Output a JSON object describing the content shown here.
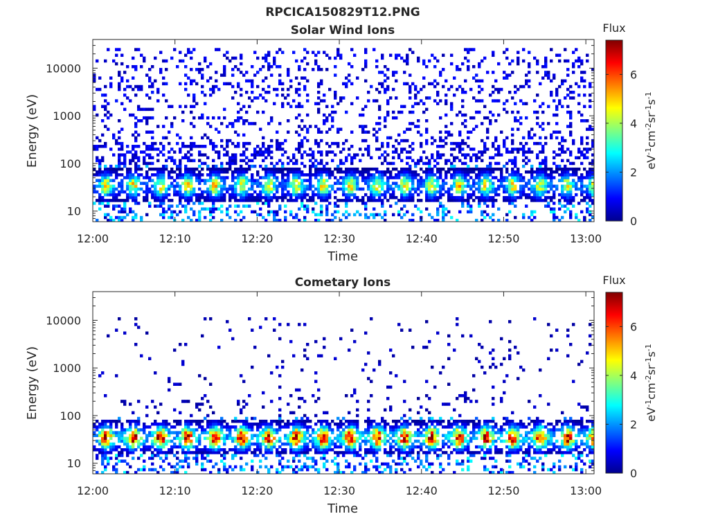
{
  "figure_title": "RPCICA150829T12.PNG",
  "chart_data": [
    {
      "type": "heatmap",
      "title": "Solar Wind Ions",
      "xlabel": "Time",
      "ylabel": "Energy (eV)",
      "x_range": [
        "12:00",
        "13:01"
      ],
      "x_ticks": [
        "12:00",
        "12:10",
        "12:20",
        "12:30",
        "12:40",
        "12:50",
        "13:00"
      ],
      "y_scale": "log",
      "y_range": [
        6,
        40000
      ],
      "y_ticks": [
        10,
        100,
        1000,
        10000
      ],
      "y_tick_labels": [
        "10",
        "100",
        "1000",
        "10000"
      ],
      "colorbar": {
        "title": "Flux",
        "label": "eV-1cm-2sr-1s-1",
        "range": [
          0,
          7.4
        ],
        "ticks": [
          0,
          2,
          4,
          6
        ],
        "tick_labels": [
          "0",
          "2",
          "4",
          "6"
        ],
        "colormap": "jet"
      },
      "features": {
        "main_band_energy_eV": [
          20,
          60
        ],
        "main_band_peak_flux": 4.5,
        "background_scatter_energy_eV": [
          100,
          25000
        ],
        "background_flux": 0.5,
        "band_period_minutes": 3.3
      }
    },
    {
      "type": "heatmap",
      "title": "Cometary Ions",
      "xlabel": "Time",
      "ylabel": "Energy (eV)",
      "x_range": [
        "12:00",
        "13:01"
      ],
      "x_ticks": [
        "12:00",
        "12:10",
        "12:20",
        "12:30",
        "12:40",
        "12:50",
        "13:00"
      ],
      "y_scale": "log",
      "y_range": [
        6,
        40000
      ],
      "y_ticks": [
        10,
        100,
        1000,
        10000
      ],
      "y_tick_labels": [
        "10",
        "100",
        "1000",
        "10000"
      ],
      "colorbar": {
        "title": "Flux",
        "label": "eV-1cm-2sr-1s-1",
        "range": [
          0,
          7.4
        ],
        "ticks": [
          0,
          2,
          4,
          6
        ],
        "tick_labels": [
          "0",
          "2",
          "4",
          "6"
        ],
        "colormap": "jet"
      },
      "features": {
        "main_band_energy_eV": [
          20,
          60
        ],
        "main_band_peak_flux": 6.5,
        "background_scatter_energy_eV": [
          100,
          12000
        ],
        "background_flux": 0.3,
        "band_period_minutes": 3.3
      }
    }
  ]
}
